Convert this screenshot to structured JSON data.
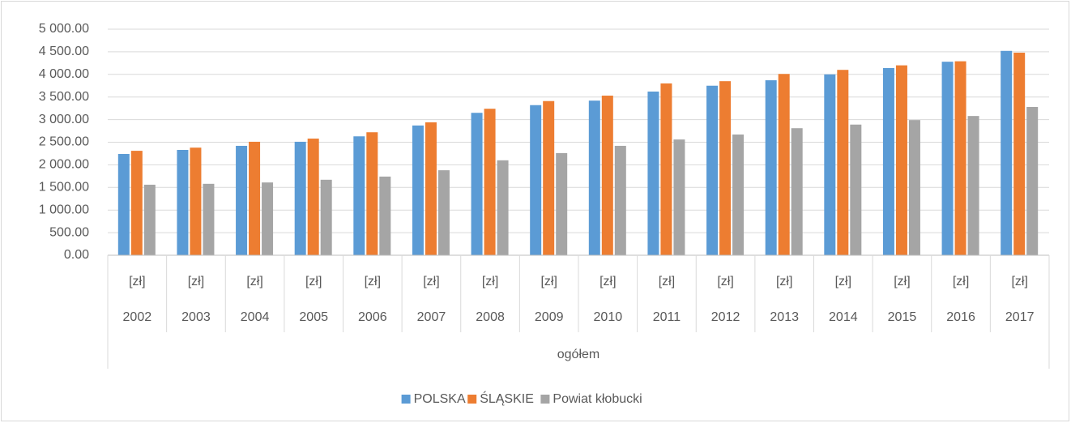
{
  "chart_data": {
    "type": "bar",
    "categories": [
      "2002",
      "2003",
      "2004",
      "2005",
      "2006",
      "2007",
      "2008",
      "2009",
      "2010",
      "2011",
      "2012",
      "2013",
      "2014",
      "2015",
      "2016",
      "2017"
    ],
    "category_units": [
      "[zł]",
      "[zł]",
      "[zł]",
      "[zł]",
      "[zł]",
      "[zł]",
      "[zł]",
      "[zł]",
      "[zł]",
      "[zł]",
      "[zł]",
      "[zł]",
      "[zł]",
      "[zł]",
      "[zł]",
      "[zł]"
    ],
    "category_group": "ogółem",
    "series": [
      {
        "name": "POLSKA",
        "color": "#5b9bd5",
        "values": [
          2240,
          2330,
          2420,
          2510,
          2630,
          2870,
          3150,
          3320,
          3420,
          3620,
          3750,
          3870,
          4000,
          4140,
          4280,
          4520
        ]
      },
      {
        "name": "ŚLĄSKIE",
        "color": "#ed7d31",
        "values": [
          2310,
          2380,
          2510,
          2580,
          2720,
          2940,
          3240,
          3410,
          3530,
          3800,
          3850,
          4010,
          4100,
          4200,
          4290,
          4480
        ]
      },
      {
        "name": "Powiat kłobucki",
        "color": "#a5a5a5",
        "values": [
          1560,
          1580,
          1610,
          1670,
          1740,
          1880,
          2100,
          2260,
          2420,
          2560,
          2670,
          2810,
          2890,
          2990,
          3080,
          3280
        ]
      }
    ],
    "ylim": [
      0,
      5000
    ],
    "yticks": [
      {
        "value": 0,
        "label": "0.00"
      },
      {
        "value": 500,
        "label": "500.00"
      },
      {
        "value": 1000,
        "label": "1 000.00"
      },
      {
        "value": 1500,
        "label": "1 500.00"
      },
      {
        "value": 2000,
        "label": "2 000.00"
      },
      {
        "value": 2500,
        "label": "2 500.00"
      },
      {
        "value": 3000,
        "label": "3 000.00"
      },
      {
        "value": 3500,
        "label": "3 500.00"
      },
      {
        "value": 4000,
        "label": "4 000.00"
      },
      {
        "value": 4500,
        "label": "4 500.00"
      },
      {
        "value": 5000,
        "label": "5 000.00"
      }
    ],
    "grid": true,
    "legend": "bottom"
  }
}
